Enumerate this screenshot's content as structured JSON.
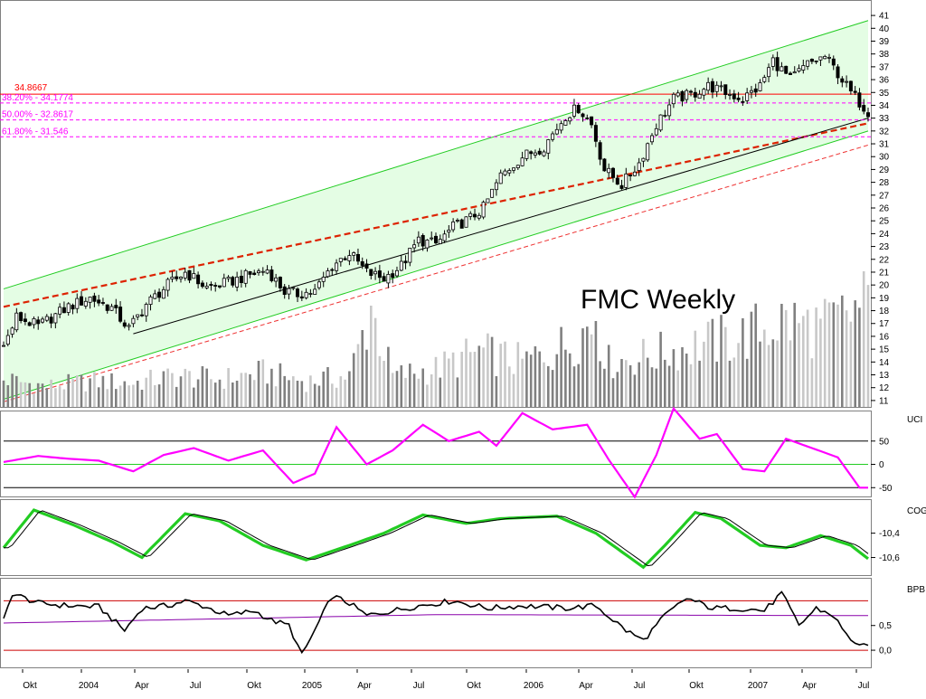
{
  "chart_data": {
    "type": "candlestick",
    "title": "FMC Weekly",
    "x_labels": [
      "Okt",
      "2004",
      "Apr",
      "Jul",
      "Okt",
      "2005",
      "Apr",
      "Jul",
      "Okt",
      "2006",
      "Apr",
      "Jul",
      "Okt",
      "2007",
      "Apr",
      "Jul"
    ],
    "x_range": [
      0,
      200
    ],
    "price_axis": {
      "range": [
        10.5,
        41.5
      ],
      "ticks": [
        11,
        12,
        13,
        14,
        15,
        16,
        17,
        18,
        19,
        20,
        21,
        22,
        23,
        24,
        25,
        26,
        27,
        28,
        29,
        30,
        31,
        32,
        33,
        34,
        35,
        36,
        37,
        38,
        39,
        40,
        41
      ]
    },
    "levels": {
      "resistance": {
        "label": "34.8667",
        "value": 34.8667
      },
      "fibonacci": [
        {
          "label": "38.20% - 34.1774",
          "value": 34.1774
        },
        {
          "label": "50.00% - 32.8617",
          "value": 32.8617
        },
        {
          "label": "61.80% - 31.546",
          "value": 31.546
        }
      ]
    },
    "channel": {
      "upper": {
        "from": [
          0,
          19.7
        ],
        "to": [
          200,
          40.6
        ]
      },
      "lower": {
        "from": [
          0,
          11.1
        ],
        "to": [
          200,
          32.0
        ]
      },
      "regression": {
        "from": [
          0,
          18.3
        ],
        "to": [
          200,
          32.6
        ]
      },
      "lower_dashed": {
        "from": [
          0,
          10.9
        ],
        "to": [
          200,
          30.9
        ]
      },
      "support": {
        "from": [
          30,
          16.2
        ],
        "to": [
          200,
          33.0
        ]
      }
    },
    "price_keypoints": [
      [
        0,
        15.2
      ],
      [
        3,
        17.5
      ],
      [
        8,
        16.8
      ],
      [
        15,
        18.3
      ],
      [
        20,
        19.0
      ],
      [
        25,
        18.2
      ],
      [
        29,
        16.6
      ],
      [
        33,
        18.5
      ],
      [
        38,
        20.0
      ],
      [
        42,
        21.0
      ],
      [
        47,
        19.8
      ],
      [
        52,
        20.2
      ],
      [
        57,
        20.8
      ],
      [
        61,
        21.2
      ],
      [
        65,
        19.5
      ],
      [
        68,
        19.3
      ],
      [
        72,
        19.5
      ],
      [
        76,
        21.5
      ],
      [
        80,
        22.5
      ],
      [
        84,
        21.0
      ],
      [
        88,
        20.5
      ],
      [
        92,
        21.5
      ],
      [
        96,
        23.5
      ],
      [
        100,
        23.2
      ],
      [
        104,
        24.5
      ],
      [
        108,
        25.2
      ],
      [
        111,
        26.0
      ],
      [
        115,
        28.5
      ],
      [
        120,
        30.0
      ],
      [
        125,
        30.8
      ],
      [
        130,
        33.2
      ],
      [
        133,
        33.8
      ],
      [
        136,
        32.5
      ],
      [
        139,
        29.0
      ],
      [
        143,
        27.8
      ],
      [
        147,
        29.5
      ],
      [
        151,
        32.5
      ],
      [
        155,
        34.5
      ],
      [
        159,
        34.8
      ],
      [
        163,
        35.5
      ],
      [
        167,
        35.0
      ],
      [
        171,
        34.5
      ],
      [
        175,
        35.5
      ],
      [
        178,
        37.5
      ],
      [
        182,
        36.0
      ],
      [
        186,
        37.2
      ],
      [
        190,
        37.8
      ],
      [
        193,
        36.5
      ],
      [
        196,
        35.0
      ],
      [
        200,
        33.5
      ]
    ],
    "volume_profile": [
      [
        0,
        0.8
      ],
      [
        10,
        0.6
      ],
      [
        20,
        0.75
      ],
      [
        30,
        0.7
      ],
      [
        40,
        0.9
      ],
      [
        50,
        0.8
      ],
      [
        60,
        1.0
      ],
      [
        70,
        0.75
      ],
      [
        80,
        0.9
      ],
      [
        85,
        2.8
      ],
      [
        90,
        0.9
      ],
      [
        100,
        1.1
      ],
      [
        110,
        1.6
      ],
      [
        120,
        1.3
      ],
      [
        130,
        1.8
      ],
      [
        137,
        2.5
      ],
      [
        140,
        1.3
      ],
      [
        150,
        1.5
      ],
      [
        160,
        1.8
      ],
      [
        170,
        2.0
      ],
      [
        180,
        2.5
      ],
      [
        190,
        2.3
      ],
      [
        200,
        3.0
      ]
    ],
    "indicators": [
      {
        "name": "UCI",
        "range": [
          -65,
          100
        ],
        "ticks": [
          "50",
          "0",
          "-50"
        ],
        "tick_values": [
          50,
          0,
          -50
        ],
        "levels": [
          50,
          0,
          -50
        ],
        "keypoints": [
          [
            0,
            5
          ],
          [
            8,
            18
          ],
          [
            15,
            12
          ],
          [
            22,
            8
          ],
          [
            30,
            -15
          ],
          [
            37,
            20
          ],
          [
            44,
            35
          ],
          [
            52,
            8
          ],
          [
            60,
            30
          ],
          [
            67,
            -40
          ],
          [
            72,
            -20
          ],
          [
            77,
            80
          ],
          [
            84,
            0
          ],
          [
            90,
            30
          ],
          [
            97,
            85
          ],
          [
            103,
            50
          ],
          [
            110,
            70
          ],
          [
            114,
            40
          ],
          [
            120,
            110
          ],
          [
            127,
            75
          ],
          [
            135,
            85
          ],
          [
            140,
            10
          ],
          [
            146,
            -70
          ],
          [
            151,
            20
          ],
          [
            155,
            120
          ],
          [
            161,
            55
          ],
          [
            165,
            65
          ],
          [
            171,
            -10
          ],
          [
            176,
            -15
          ],
          [
            181,
            55
          ],
          [
            187,
            35
          ],
          [
            193,
            15
          ],
          [
            198,
            -50
          ]
        ]
      },
      {
        "name": "COG",
        "range": [
          -10.7,
          -10.18
        ],
        "ticks": [
          "-10,4",
          "-10,6"
        ],
        "tick_values": [
          -10.4,
          -10.6
        ],
        "keypoints": [
          [
            0,
            -10.52
          ],
          [
            7,
            -10.21
          ],
          [
            16,
            -10.33
          ],
          [
            25,
            -10.47
          ],
          [
            32,
            -10.6
          ],
          [
            42,
            -10.24
          ],
          [
            50,
            -10.3
          ],
          [
            60,
            -10.5
          ],
          [
            70,
            -10.62
          ],
          [
            80,
            -10.5
          ],
          [
            88,
            -10.4
          ],
          [
            97,
            -10.25
          ],
          [
            107,
            -10.32
          ],
          [
            115,
            -10.28
          ],
          [
            128,
            -10.26
          ],
          [
            137,
            -10.4
          ],
          [
            148,
            -10.68
          ],
          [
            153,
            -10.5
          ],
          [
            160,
            -10.23
          ],
          [
            166,
            -10.28
          ],
          [
            175,
            -10.5
          ],
          [
            181,
            -10.52
          ],
          [
            189,
            -10.42
          ],
          [
            196,
            -10.5
          ],
          [
            200,
            -10.61
          ]
        ]
      },
      {
        "name": "BPB",
        "range": [
          -0.2,
          1.3
        ],
        "ticks": [
          "0,5",
          "0,0"
        ],
        "tick_values": [
          0.5,
          0.0
        ],
        "levels": [
          1.0,
          0.0
        ],
        "baseline": {
          "from": [
            0,
            0.55
          ],
          "to": [
            200,
            0.7
          ],
          "peak": [
            100,
            0.72
          ]
        },
        "keypoints": [
          [
            0,
            0.6
          ],
          [
            2,
            1.15
          ],
          [
            8,
            0.95
          ],
          [
            15,
            0.9
          ],
          [
            22,
            0.88
          ],
          [
            28,
            0.4
          ],
          [
            32,
            0.85
          ],
          [
            38,
            0.9
          ],
          [
            42,
            1.0
          ],
          [
            46,
            0.9
          ],
          [
            52,
            0.7
          ],
          [
            58,
            0.8
          ],
          [
            62,
            0.6
          ],
          [
            66,
            0.5
          ],
          [
            69,
            -0.1
          ],
          [
            72,
            0.4
          ],
          [
            76,
            1.1
          ],
          [
            80,
            0.95
          ],
          [
            84,
            0.7
          ],
          [
            90,
            0.8
          ],
          [
            96,
            0.9
          ],
          [
            104,
            1.0
          ],
          [
            112,
            0.85
          ],
          [
            120,
            0.9
          ],
          [
            130,
            0.85
          ],
          [
            137,
            0.9
          ],
          [
            144,
            0.4
          ],
          [
            148,
            0.2
          ],
          [
            153,
            0.7
          ],
          [
            158,
            1.05
          ],
          [
            164,
            0.85
          ],
          [
            170,
            0.85
          ],
          [
            176,
            0.8
          ],
          [
            180,
            1.15
          ],
          [
            184,
            0.5
          ],
          [
            188,
            0.85
          ],
          [
            192,
            0.7
          ],
          [
            195,
            0.3
          ],
          [
            198,
            0.1
          ],
          [
            200,
            0.05
          ]
        ]
      }
    ]
  }
}
